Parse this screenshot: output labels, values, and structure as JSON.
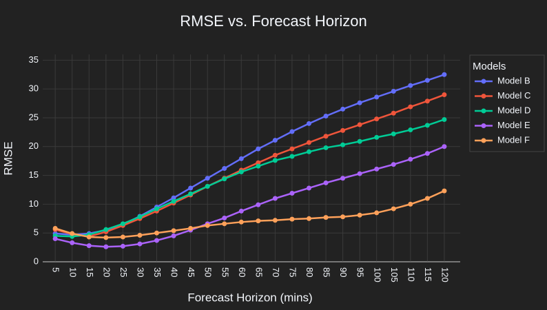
{
  "chart_data": {
    "type": "line",
    "title": "RMSE vs. Forecast Horizon",
    "x_label": "Forecast Horizon (mins)",
    "y_label": "RMSE",
    "legend_title": "Models",
    "legend_position": "right",
    "x": [
      5,
      10,
      15,
      20,
      25,
      30,
      35,
      40,
      45,
      50,
      55,
      60,
      65,
      70,
      75,
      80,
      85,
      90,
      95,
      100,
      105,
      110,
      115,
      120
    ],
    "xlim": [
      1.3,
      124.7
    ],
    "xticks": [
      5,
      10,
      15,
      20,
      25,
      30,
      35,
      40,
      45,
      50,
      55,
      60,
      65,
      70,
      75,
      80,
      85,
      90,
      95,
      100,
      105,
      110,
      115,
      120
    ],
    "ylim": [
      0,
      36
    ],
    "yticks": [
      0,
      5,
      10,
      15,
      20,
      25,
      30,
      35
    ],
    "grid": true,
    "series": [
      {
        "name": "Model B",
        "color": "#636efa",
        "values": [
          4.9,
          4.7,
          4.9,
          5.5,
          6.5,
          7.9,
          9.5,
          11.1,
          12.8,
          14.5,
          16.2,
          17.9,
          19.6,
          21.1,
          22.6,
          24.0,
          25.3,
          26.5,
          27.6,
          28.6,
          29.6,
          30.6,
          31.5,
          32.5
        ]
      },
      {
        "name": "Model C",
        "color": "#ef553b",
        "values": [
          5.6,
          4.8,
          4.4,
          5.2,
          6.3,
          7.5,
          8.8,
          10.2,
          11.6,
          13.1,
          14.5,
          15.9,
          17.2,
          18.5,
          19.6,
          20.7,
          21.8,
          22.8,
          23.8,
          24.8,
          25.8,
          26.9,
          27.9,
          29.0
        ]
      },
      {
        "name": "Model D",
        "color": "#00cc96",
        "values": [
          4.5,
          4.4,
          4.7,
          5.6,
          6.6,
          7.8,
          9.2,
          10.5,
          11.8,
          13.1,
          14.4,
          15.6,
          16.6,
          17.6,
          18.3,
          19.1,
          19.8,
          20.3,
          20.9,
          21.6,
          22.2,
          22.9,
          23.7,
          24.7
        ]
      },
      {
        "name": "Model E",
        "color": "#ab63fa",
        "values": [
          4.0,
          3.3,
          2.8,
          2.6,
          2.7,
          3.1,
          3.7,
          4.5,
          5.5,
          6.6,
          7.6,
          8.8,
          9.9,
          11.0,
          11.9,
          12.8,
          13.7,
          14.5,
          15.3,
          16.1,
          16.9,
          17.8,
          18.8,
          20.0
        ]
      },
      {
        "name": "Model F",
        "color": "#ffa15a",
        "values": [
          5.8,
          4.9,
          4.3,
          4.2,
          4.3,
          4.6,
          5.0,
          5.4,
          5.8,
          6.3,
          6.6,
          6.9,
          7.1,
          7.2,
          7.4,
          7.5,
          7.7,
          7.8,
          8.1,
          8.5,
          9.2,
          10.0,
          11.0,
          12.3
        ]
      }
    ]
  }
}
